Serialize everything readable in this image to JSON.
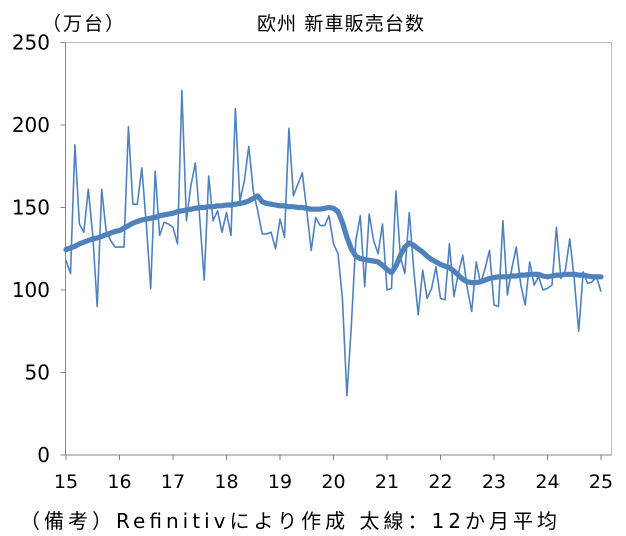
{
  "chart_data": {
    "type": "line",
    "title": "欧州 新車販売台数",
    "ylabel": "（万台）",
    "ylim": [
      0,
      250
    ],
    "yticks": [
      0,
      50,
      100,
      150,
      200,
      250
    ],
    "xticks": [
      {
        "label": "15",
        "at": "2015-01"
      },
      {
        "label": "16",
        "at": "2016-01"
      },
      {
        "label": "17",
        "at": "2017-01"
      },
      {
        "label": "18",
        "at": "2018-01"
      },
      {
        "label": "19",
        "at": "2019-01"
      },
      {
        "label": "20",
        "at": "2020-01"
      },
      {
        "label": "21",
        "at": "2021-01"
      },
      {
        "label": "22",
        "at": "2022-01"
      },
      {
        "label": "23",
        "at": "2023-01"
      },
      {
        "label": "24",
        "at": "2024-01"
      },
      {
        "label": "25",
        "at": "2025-01"
      }
    ],
    "grid": false,
    "legend": false,
    "x": [
      "2015-01",
      "2015-02",
      "2015-03",
      "2015-04",
      "2015-05",
      "2015-06",
      "2015-07",
      "2015-08",
      "2015-09",
      "2015-10",
      "2015-11",
      "2015-12",
      "2016-01",
      "2016-02",
      "2016-03",
      "2016-04",
      "2016-05",
      "2016-06",
      "2016-07",
      "2016-08",
      "2016-09",
      "2016-10",
      "2016-11",
      "2016-12",
      "2017-01",
      "2017-02",
      "2017-03",
      "2017-04",
      "2017-05",
      "2017-06",
      "2017-07",
      "2017-08",
      "2017-09",
      "2017-10",
      "2017-11",
      "2017-12",
      "2018-01",
      "2018-02",
      "2018-03",
      "2018-04",
      "2018-05",
      "2018-06",
      "2018-07",
      "2018-08",
      "2018-09",
      "2018-10",
      "2018-11",
      "2018-12",
      "2019-01",
      "2019-02",
      "2019-03",
      "2019-04",
      "2019-05",
      "2019-06",
      "2019-07",
      "2019-08",
      "2019-09",
      "2019-10",
      "2019-11",
      "2019-12",
      "2020-01",
      "2020-02",
      "2020-03",
      "2020-04",
      "2020-05",
      "2020-06",
      "2020-07",
      "2020-08",
      "2020-09",
      "2020-10",
      "2020-11",
      "2020-12",
      "2021-01",
      "2021-02",
      "2021-03",
      "2021-04",
      "2021-05",
      "2021-06",
      "2021-07",
      "2021-08",
      "2021-09",
      "2021-10",
      "2021-11",
      "2021-12",
      "2022-01",
      "2022-02",
      "2022-03",
      "2022-04",
      "2022-05",
      "2022-06",
      "2022-07",
      "2022-08",
      "2022-09",
      "2022-10",
      "2022-11",
      "2022-12",
      "2023-01",
      "2023-02",
      "2023-03",
      "2023-04",
      "2023-05",
      "2023-06",
      "2023-07",
      "2023-08",
      "2023-09",
      "2023-10",
      "2023-11",
      "2023-12",
      "2024-01",
      "2024-02",
      "2024-03",
      "2024-04",
      "2024-05",
      "2024-06",
      "2024-07",
      "2024-08",
      "2024-09",
      "2024-10",
      "2024-11",
      "2024-12",
      "2025-01"
    ],
    "series": [
      {
        "color": "#4F81BD",
        "values": [
          118,
          110,
          188,
          140,
          135,
          161,
          133,
          90,
          161,
          136,
          130,
          126,
          126,
          126,
          199,
          152,
          152,
          174,
          140,
          101,
          172,
          133,
          141,
          140,
          138,
          128,
          221,
          142,
          163,
          177,
          143,
          106,
          169,
          142,
          148,
          135,
          147,
          133,
          210,
          154,
          166,
          187,
          160,
          148,
          134,
          134,
          135,
          125,
          143,
          132,
          198,
          157,
          164,
          171,
          148,
          124,
          144,
          139,
          139,
          145,
          128,
          122,
          95,
          36,
          78,
          130,
          145,
          102,
          146,
          130,
          122,
          140,
          100,
          101,
          160,
          120,
          110,
          147,
          112,
          85,
          112,
          95,
          101,
          114,
          95,
          94,
          128,
          96,
          110,
          121,
          101,
          87,
          117,
          104,
          113,
          124,
          91,
          90,
          142,
          97,
          113,
          126,
          103,
          91,
          117,
          103,
          108,
          100,
          101,
          103,
          138,
          107,
          112,
          131,
          106,
          75,
          111,
          104,
          105,
          108,
          99
        ]
      },
      {
        "color": "#4F81BD",
        "values": [
          124.5,
          125.5,
          126.5,
          128,
          129,
          130,
          131,
          131.5,
          132.5,
          133.5,
          134.5,
          135.5,
          136,
          137.5,
          139,
          140.5,
          141.5,
          142.5,
          143,
          143.5,
          144,
          145,
          145.5,
          146,
          146.5,
          147.5,
          148,
          148.5,
          149,
          149.5,
          150,
          150,
          150.5,
          150.5,
          151,
          151,
          151.5,
          151.5,
          152,
          152.5,
          153,
          154,
          155.5,
          157,
          153.5,
          152.5,
          152,
          151.5,
          151,
          151,
          150.5,
          150.5,
          150,
          150,
          149.5,
          149,
          149,
          149,
          149.5,
          150,
          149.5,
          147.5,
          141,
          132,
          125,
          120.5,
          119,
          118.5,
          118,
          117.5,
          117,
          115,
          112.5,
          110.5,
          114.5,
          121,
          126,
          128.5,
          127,
          125,
          123,
          120.5,
          118.5,
          117,
          115.5,
          114.5,
          113.5,
          111.5,
          109,
          106.5,
          105,
          104.5,
          104.5,
          105,
          106,
          107,
          107.5,
          108,
          108,
          108,
          108.5,
          108.5,
          109,
          109,
          109.5,
          109.5,
          109.5,
          108.5,
          108,
          108.5,
          109,
          109,
          109.5,
          109.5,
          109.5,
          109,
          109,
          108.5,
          108,
          108,
          108
        ]
      }
    ],
    "source_note": "（備考）Refinitivにより作成 太線：12か月平均"
  }
}
